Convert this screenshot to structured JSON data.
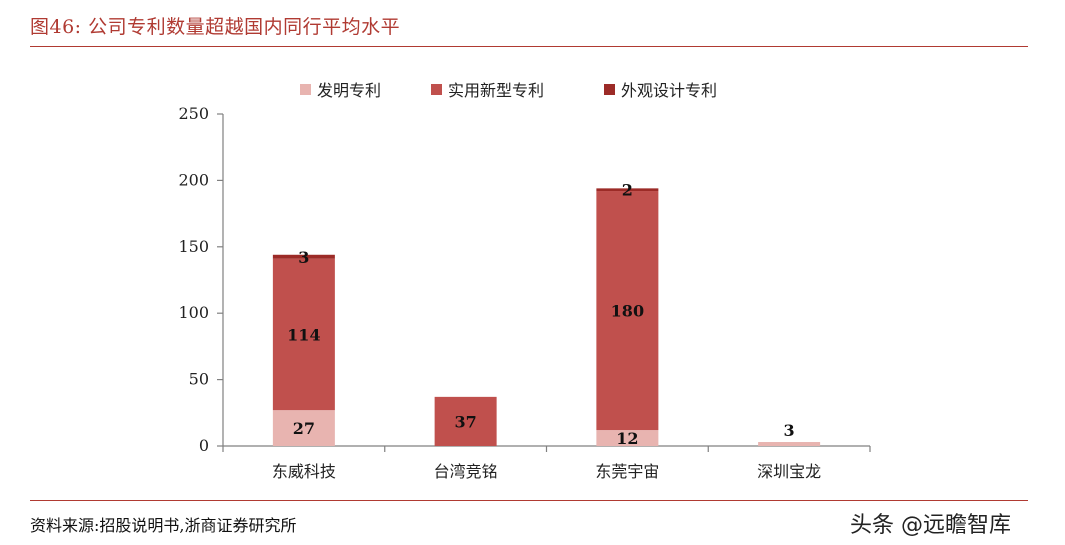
{
  "figure": {
    "title": "图46:  公司专利数量超越国内同行平均水平",
    "source": "资料来源:招股说明书,浙商证券研究所",
    "watermark": "头条 @远瞻智库"
  },
  "colors": {
    "accent": "#b03a32",
    "series": [
      "#e8b4b0",
      "#c0504d",
      "#9c2b27"
    ],
    "axis": "#808080"
  },
  "chart_data": {
    "type": "bar",
    "stacked": true,
    "title": "",
    "xlabel": "",
    "ylabel": "",
    "ylim": [
      0,
      250
    ],
    "yticks": [
      0,
      50,
      100,
      150,
      200,
      250
    ],
    "categories": [
      "东威科技",
      "台湾竞铭",
      "东莞宇宙",
      "深圳宝龙"
    ],
    "series": [
      {
        "name": "发明专利",
        "values": [
          27,
          0,
          12,
          3
        ]
      },
      {
        "name": "实用新型专利",
        "values": [
          114,
          37,
          180,
          0
        ]
      },
      {
        "name": "外观设计专利",
        "values": [
          3,
          0,
          2,
          0
        ]
      }
    ],
    "data_labels": [
      {
        "category": 0,
        "series": 0,
        "text": "27"
      },
      {
        "category": 0,
        "series": 1,
        "text": "114"
      },
      {
        "category": 0,
        "series": 2,
        "text": "3"
      },
      {
        "category": 1,
        "series": 1,
        "text": "37"
      },
      {
        "category": 2,
        "series": 0,
        "text": "12"
      },
      {
        "category": 2,
        "series": 1,
        "text": "180"
      },
      {
        "category": 2,
        "series": 2,
        "text": "2"
      },
      {
        "category": 3,
        "series": 0,
        "text": "3"
      }
    ],
    "legend_position": "top",
    "grid": false
  }
}
